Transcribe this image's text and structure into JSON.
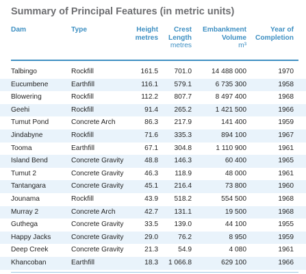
{
  "title": "Summary of Principal Features (in metric units)",
  "columns": {
    "dam": "Dam",
    "type": "Type",
    "height_l1": "Height",
    "height_l2": "metres",
    "crest_l1": "Crest",
    "crest_l2": "Length",
    "crest_unit": "metres",
    "emb_l1": "Embankment",
    "emb_l2": "Volume",
    "emb_unit": "m³",
    "year_l1": "Year of",
    "year_l2": "Completion"
  },
  "rows": [
    {
      "dam": "Talbingo",
      "type": "Rockfill",
      "height": "161.5",
      "crest": "701.0",
      "volume": "14 488 000",
      "year": "1970"
    },
    {
      "dam": "Eucumbene",
      "type": "Earthfill",
      "height": "116.1",
      "crest": "579.1",
      "volume": "6 735 300",
      "year": "1958"
    },
    {
      "dam": "Blowering",
      "type": "Rockfill",
      "height": "112.2",
      "crest": "807.7",
      "volume": "8 497 400",
      "year": "1968"
    },
    {
      "dam": "Geehi",
      "type": "Rockfill",
      "height": "91.4",
      "crest": "265.2",
      "volume": "1 421 500",
      "year": "1966"
    },
    {
      "dam": "Tumut Pond",
      "type": "Concrete Arch",
      "height": "86.3",
      "crest": "217.9",
      "volume": "141 400",
      "year": "1959"
    },
    {
      "dam": "Jindabyne",
      "type": "Rockfill",
      "height": "71.6",
      "crest": "335.3",
      "volume": "894 100",
      "year": "1967"
    },
    {
      "dam": "Tooma",
      "type": "Earthfill",
      "height": "67.1",
      "crest": "304.8",
      "volume": "1 110 900",
      "year": "1961"
    },
    {
      "dam": "Island Bend",
      "type": "Concrete Gravity",
      "height": "48.8",
      "crest": "146.3",
      "volume": "60 400",
      "year": "1965"
    },
    {
      "dam": "Tumut 2",
      "type": "Concrete Gravity",
      "height": "46.3",
      "crest": "118.9",
      "volume": "48 000",
      "year": "1961"
    },
    {
      "dam": "Tantangara",
      "type": "Concrete Gravity",
      "height": "45.1",
      "crest": "216.4",
      "volume": "73 800",
      "year": "1960"
    },
    {
      "dam": "Jounama",
      "type": "Rockfill",
      "height": "43.9",
      "crest": "518.2",
      "volume": "554 500",
      "year": "1968"
    },
    {
      "dam": "Murray 2",
      "type": "Concrete Arch",
      "height": "42.7",
      "crest": "131.1",
      "volume": "19 500",
      "year": "1968"
    },
    {
      "dam": "Guthega",
      "type": "Concrete Gravity",
      "height": "33.5",
      "crest": "139.0",
      "volume": "44 100",
      "year": "1955"
    },
    {
      "dam": "Happy Jacks",
      "type": "Concrete Gravity",
      "height": "29.0",
      "crest": "76.2",
      "volume": "8 950",
      "year": "1959"
    },
    {
      "dam": "Deep Creek",
      "type": "Concrete Gravity",
      "height": "21.3",
      "crest": "54.9",
      "volume": "4 080",
      "year": "1961"
    },
    {
      "dam": "Khancoban",
      "type": "Earthfill",
      "height": "18.3",
      "crest": "1 066.8",
      "volume": "629 100",
      "year": "1966"
    }
  ],
  "colors": {
    "title": "#6d6e71",
    "header": "#3d8fc2",
    "stripe": "#e9f3fb"
  }
}
